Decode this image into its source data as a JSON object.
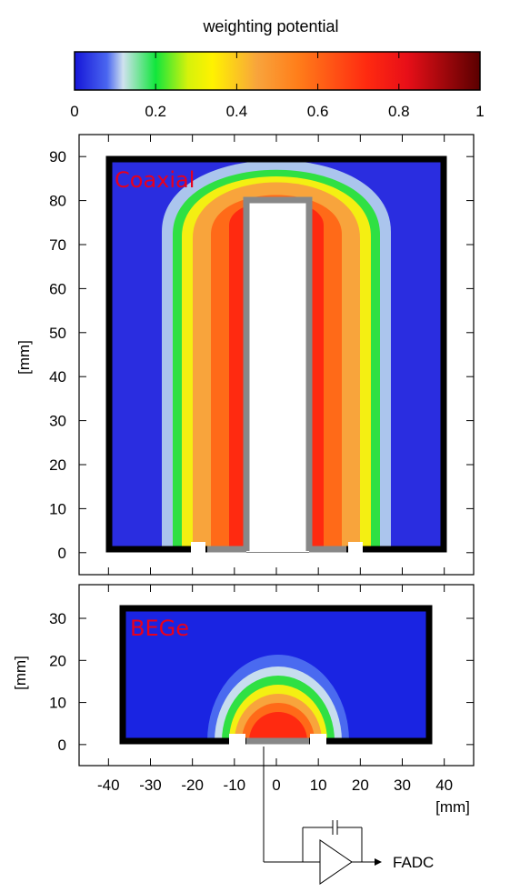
{
  "colorbar": {
    "title": "weighting potential",
    "range": [
      0,
      1
    ],
    "ticks": [
      "0",
      "0.2",
      "0.4",
      "0.6",
      "0.8",
      "1"
    ],
    "stops": [
      {
        "v": 0.0,
        "color": "#1515d8"
      },
      {
        "v": 0.08,
        "color": "#4a66f0"
      },
      {
        "v": 0.12,
        "color": "#cfe2ee"
      },
      {
        "v": 0.2,
        "color": "#11e63c"
      },
      {
        "v": 0.28,
        "color": "#d6f20b"
      },
      {
        "v": 0.34,
        "color": "#fff200"
      },
      {
        "v": 0.45,
        "color": "#f8a43c"
      },
      {
        "v": 0.55,
        "color": "#ff7e1a"
      },
      {
        "v": 0.72,
        "color": "#ff2a10"
      },
      {
        "v": 0.82,
        "color": "#e80f18"
      },
      {
        "v": 1.0,
        "color": "#5a0000"
      }
    ]
  },
  "panels": {
    "coaxial": {
      "label": "Coaxial",
      "y_ticks": [
        "0",
        "10",
        "20",
        "30",
        "40",
        "50",
        "60",
        "70",
        "80",
        "90"
      ],
      "ylabel": "[mm]",
      "xlim": [
        -47,
        47
      ],
      "ylim": [
        -5,
        95
      ]
    },
    "bege": {
      "label": "BEGe",
      "y_ticks": [
        "0",
        "10",
        "20",
        "30"
      ],
      "ylabel": "[mm]",
      "xlim": [
        -47,
        47
      ],
      "ylim": [
        -5,
        38
      ]
    }
  },
  "x_axis": {
    "ticks": [
      "-40",
      "-30",
      "-20",
      "-10",
      "0",
      "10",
      "20",
      "30",
      "40"
    ],
    "label": "[mm]"
  },
  "readout": {
    "label": "FADC"
  },
  "chart_data": [
    {
      "type": "heatmap",
      "label": "Coaxial",
      "quantity": "weighting potential",
      "value_range": [
        0,
        1
      ],
      "detector": {
        "x_range": [
          -40,
          40
        ],
        "y_range": [
          0,
          92
        ]
      },
      "bore": {
        "x_range": [
          -8,
          7
        ],
        "y_range": [
          0,
          83
        ]
      },
      "readout_contact": {
        "x_range": [
          -17,
          7
        ],
        "y": 0
      },
      "xlim": [
        -47,
        47
      ],
      "ylim": [
        -5,
        95
      ]
    },
    {
      "type": "heatmap",
      "label": "BEGe",
      "quantity": "weighting potential",
      "value_range": [
        0,
        1
      ],
      "detector": {
        "x_range": [
          -37,
          36
        ],
        "y_range": [
          0,
          31
        ]
      },
      "point_contact": {
        "x_range": [
          -8,
          7
        ],
        "y": 0
      },
      "xlim": [
        -47,
        47
      ],
      "ylim": [
        -5,
        38
      ]
    }
  ]
}
